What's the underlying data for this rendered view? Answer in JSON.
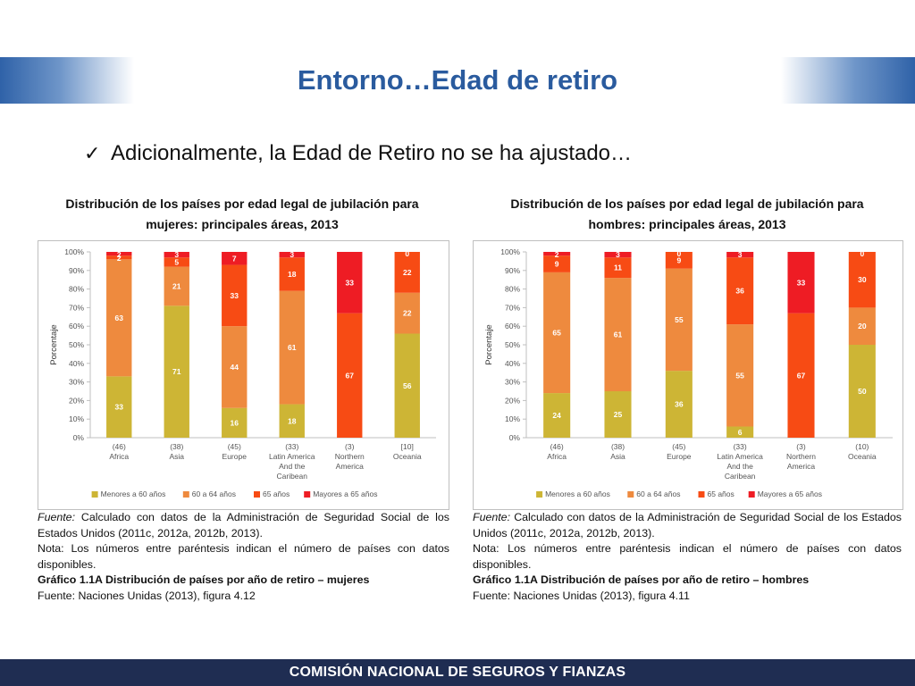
{
  "header": {
    "title": "Entorno…Edad de retiro"
  },
  "bullet": {
    "icon": "check-icon",
    "text": "Adicionalmente, la Edad de Retiro no se ha ajustado…"
  },
  "left": {
    "title_line1": "Distribución de los países por edad legal de jubilación para",
    "title_line2": "mujeres: principales áreas, 2013",
    "notes": {
      "source_label": "Fuente:",
      "source_text": " Calculado con datos de la Administración de Seguridad Social de los Estados Unidos (2011c, 2012a, 2012b, 2013).",
      "nota": "Nota: Los números entre paréntesis indican el número de países  con datos disponibles.",
      "grafico": "Gráfico 1.1A Distribución de países por año de retiro – mujeres",
      "fuente2": "Fuente: Naciones Unidas (2013), figura 4.12"
    }
  },
  "right": {
    "title_line1": "Distribución de los países por edad legal de jubilación para",
    "title_line2": "hombres: principales áreas, 2013",
    "notes": {
      "source_label": "Fuente:",
      "source_text": " Calculado con datos de la Administración de Seguridad Social de los Estados Unidos (2011c, 2012a, 2012b, 2013).",
      "nota": "Nota: Los números entre paréntesis indican el número de países con datos disponibles.",
      "grafico": "Gráfico 1.1A Distribución de países por año de retiro – hombres",
      "fuente2": "Fuente: Naciones Unidas (2013), figura 4.11"
    }
  },
  "footer": {
    "text": "COMISIÓN NACIONAL DE SEGUROS Y FIANZAS"
  },
  "chart_data": [
    {
      "type": "bar",
      "stacked": true,
      "ylabel": "Porcentaje",
      "ylim": [
        0,
        100
      ],
      "y_ticks": [
        "0%",
        "10%",
        "20%",
        "30%",
        "40%",
        "50%",
        "60%",
        "70%",
        "80%",
        "90%",
        "100%"
      ],
      "grid": false,
      "legend_position": "bottom",
      "categories": [
        [
          "(46)",
          "Africa"
        ],
        [
          "(38)",
          "Asia"
        ],
        [
          "(45)",
          "Europe"
        ],
        [
          "(33)",
          "Latin America",
          "And the",
          "Caribean"
        ],
        [
          "(3)",
          "Northern",
          "America"
        ],
        [
          "[10]",
          "Oceania"
        ]
      ],
      "series": [
        {
          "name": "Menores a 60 años",
          "color": "#cdb535",
          "values": [
            33,
            71,
            16,
            18,
            0,
            56
          ]
        },
        {
          "name": "60 a 64 años",
          "color": "#ee8a3e",
          "values": [
            63,
            21,
            44,
            61,
            0,
            22
          ]
        },
        {
          "name": "65 años",
          "color": "#f74b14",
          "values": [
            2,
            5,
            33,
            18,
            67,
            22
          ]
        },
        {
          "name": "Mayores a 65 años",
          "color": "#ee1c24",
          "values": [
            2,
            3,
            7,
            3,
            33,
            0
          ]
        }
      ]
    },
    {
      "type": "bar",
      "stacked": true,
      "ylabel": "Porcentaje",
      "ylim": [
        0,
        100
      ],
      "y_ticks": [
        "0%",
        "10%",
        "20%",
        "30%",
        "40%",
        "50%",
        "60%",
        "70%",
        "80%",
        "90%",
        "100%"
      ],
      "grid": false,
      "legend_position": "bottom",
      "categories": [
        [
          "(46)",
          "Africa"
        ],
        [
          "(38)",
          "Asia"
        ],
        [
          "(45)",
          "Europe"
        ],
        [
          "(33)",
          "Latin America",
          "And the",
          "Caribean"
        ],
        [
          "(3)",
          "Northern",
          "America"
        ],
        [
          "(10)",
          "Oceania"
        ]
      ],
      "series": [
        {
          "name": "Menores a 60 años",
          "color": "#cdb535",
          "values": [
            24,
            25,
            36,
            6,
            0,
            50
          ]
        },
        {
          "name": "60 a 64 años",
          "color": "#ee8a3e",
          "values": [
            65,
            61,
            55,
            55,
            0,
            20
          ]
        },
        {
          "name": "65 años",
          "color": "#f74b14",
          "values": [
            9,
            11,
            9,
            36,
            67,
            30
          ]
        },
        {
          "name": "Mayores a 65 años",
          "color": "#ee1c24",
          "values": [
            2,
            3,
            0,
            3,
            33,
            0
          ]
        }
      ]
    }
  ]
}
